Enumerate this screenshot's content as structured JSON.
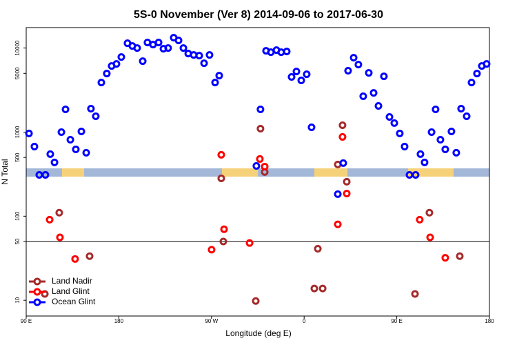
{
  "chart_data": {
    "type": "scatter",
    "title": "5S-0 November (Ver 8)   2014-09-06 to 2017-06-30",
    "x_label": "Longitude (deg E)",
    "y_label": "N Total",
    "log_y": true,
    "legend": "bottom-left",
    "hline": 50,
    "xlim": [
      90,
      540
    ],
    "xticks": [
      {
        "value": 90,
        "label": "90 E"
      },
      180,
      {
        "value": 270,
        "label": "90 W"
      },
      {
        "value": 360,
        "label": "0"
      },
      {
        "value": 450,
        "label": "90 E"
      },
      {
        "value": 540,
        "label": "180"
      }
    ],
    "ylim": [
      6.5,
      17500
    ],
    "yticks": [
      10,
      50,
      100,
      500,
      1000,
      5000,
      10000
    ],
    "series": [
      {
        "name": "Land Nadir",
        "color": "#a52a2a",
        "x": [
          108.1,
          122.1,
          151.6,
          279.5,
          281.5,
          313.0,
          317.6,
          321.7,
          369.9,
          373.3,
          378.0,
          392.7,
          397.3,
          401.4,
          467.7,
          481.7,
          511.2
        ],
        "values": [
          11.9,
          110,
          33.5,
          282,
          50,
          9.8,
          1099,
          335,
          13.8,
          41,
          13.8,
          412,
          1208,
          257,
          11.9,
          110,
          33.5
        ]
      },
      {
        "name": "Land Glint",
        "color": "#ff0000",
        "x": [
          112.8,
          122.8,
          137.5,
          279.5,
          270.1,
          282.2,
          307.0,
          317.0,
          321.7,
          392.7,
          397.3,
          401.4,
          472.3,
          482.4,
          497.1
        ],
        "values": [
          91,
          56,
          31,
          537,
          40,
          70,
          48,
          479,
          389,
          80,
          877,
          186,
          91,
          56,
          32
        ]
      },
      {
        "name": "Ocean Glint",
        "color": "#0000ff",
        "x": [
          92.7,
          98.0,
          102.7,
          108.7,
          113.4,
          117.5,
          124.2,
          128.2,
          132.9,
          138.2,
          143.6,
          148.3,
          152.9,
          157.6,
          163.0,
          168.3,
          173.0,
          177.7,
          182.4,
          188.4,
          193.1,
          197.8,
          203.2,
          207.8,
          213.2,
          218.6,
          223.3,
          227.9,
          233.3,
          238.0,
          242.7,
          247.4,
          252.7,
          258.1,
          262.8,
          268.1,
          273.5,
          277.5,
          313.6,
          317.6,
          323.0,
          327.7,
          333.1,
          337.7,
          343.1,
          347.8,
          352.5,
          357.2,
          362.5,
          367.2,
          392.7,
          398.0,
          402.7,
          408.1,
          412.7,
          417.4,
          422.8,
          427.5,
          432.2,
          437.5,
          442.9,
          447.6,
          452.9,
          457.6,
          462.3,
          468.3,
          473.0,
          477.0,
          483.8,
          487.7,
          492.4,
          497.1,
          503.1,
          507.8,
          512.5,
          517.9,
          522.6,
          527.9,
          532.6,
          537.3
        ],
        "values": [
          964,
          673,
          310,
          310,
          547,
          436,
          1000,
          1864,
          812,
          624,
          1019,
          568,
          1900,
          1544,
          3890,
          4975,
          6120,
          6475,
          7820,
          11400,
          10590,
          10000,
          6985,
          11640,
          10990,
          11640,
          9815,
          10000,
          13270,
          12310,
          10000,
          8600,
          8280,
          8120,
          6600,
          8280,
          3890,
          4700,
          396,
          1864,
          9270,
          8930,
          9440,
          8930,
          9100,
          4530,
          5260,
          4120,
          4880,
          1140,
          183,
          428,
          5370,
          7680,
          6350,
          2670,
          5070,
          2930,
          2050,
          4610,
          1514,
          1280,
          964,
          673,
          310,
          310,
          547,
          436,
          1000,
          1864,
          812,
          624,
          1019,
          568,
          1900,
          1544,
          3890,
          4975,
          6120,
          6475
        ]
      }
    ]
  }
}
